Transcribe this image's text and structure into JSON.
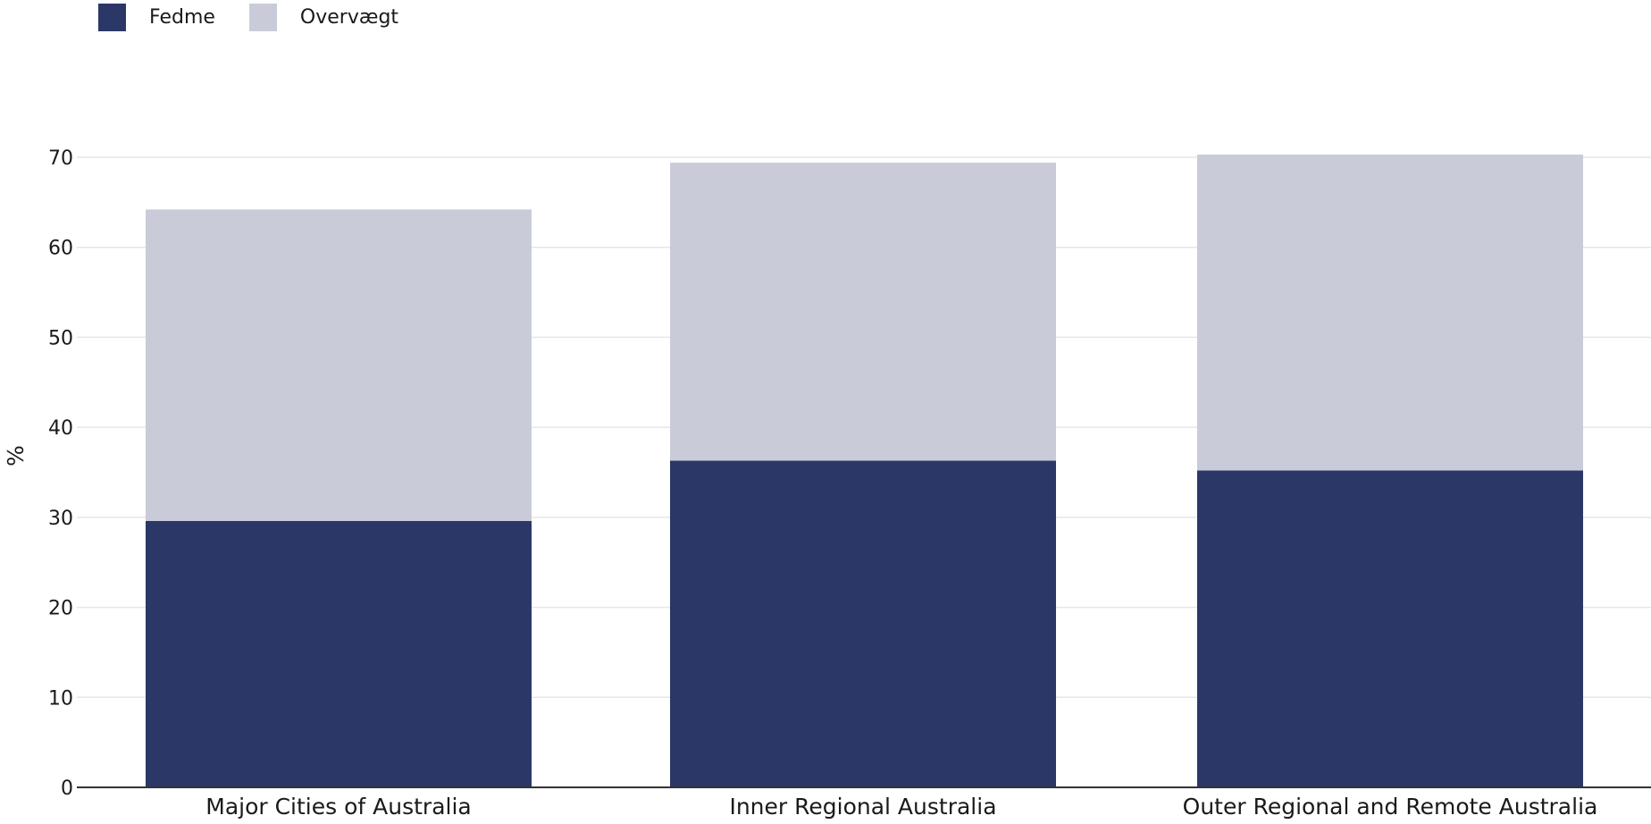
{
  "chart_data": {
    "type": "bar",
    "stacked": true,
    "categories": [
      "Major Cities of Australia",
      "Inner Regional Australia",
      "Outer Regional and Remote Australia"
    ],
    "series": [
      {
        "name": "Fedme",
        "values": [
          29.6,
          36.3,
          35.2
        ],
        "color": "#2b3766"
      },
      {
        "name": "Overvægt",
        "values": [
          34.6,
          33.1,
          35.1
        ],
        "color": "#c9ccd8"
      }
    ],
    "ylabel": "%",
    "ylim": [
      0,
      70
    ],
    "yticks": [
      0,
      10,
      20,
      30,
      40,
      50,
      60,
      70
    ],
    "grid": true,
    "legend_position": "top-left"
  }
}
